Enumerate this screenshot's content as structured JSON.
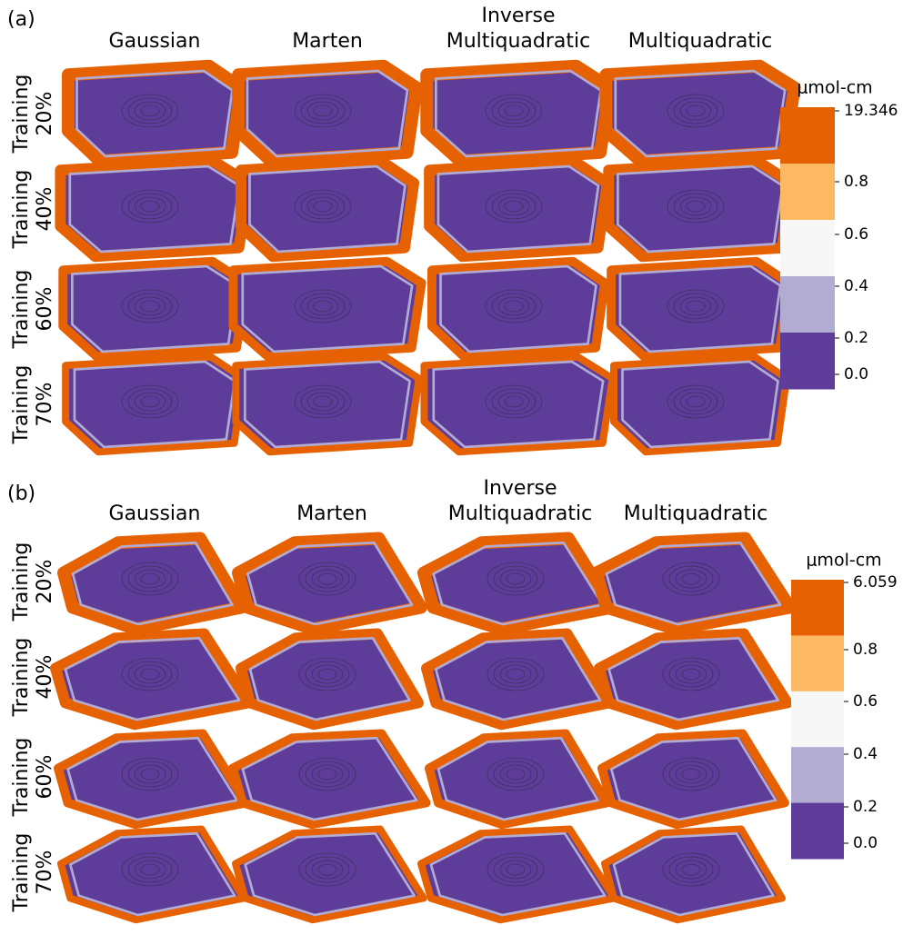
{
  "panels": [
    {
      "label": "(a)",
      "columns": [
        [
          "Gaussian"
        ],
        [
          "Marten"
        ],
        [
          "Inverse",
          "Multiquadratic"
        ],
        [
          "Multiquadratic"
        ]
      ],
      "rows": [
        [
          "Training",
          "20%"
        ],
        [
          "Training",
          "40%"
        ],
        [
          "Training",
          "60%"
        ],
        [
          "Training",
          "70%"
        ]
      ],
      "colorbar": {
        "unit": "μmol-cm",
        "ticks": [
          "19.346",
          "0.8",
          "0.6",
          "0.4",
          "0.2",
          "0.0"
        ]
      }
    },
    {
      "label": "(b)",
      "columns": [
        [
          "Gaussian"
        ],
        [
          "Marten"
        ],
        [
          "Inverse",
          "Multiquadratic"
        ],
        [
          "Multiquadratic"
        ]
      ],
      "rows": [
        [
          "Training",
          "20%"
        ],
        [
          "Training",
          "40%"
        ],
        [
          "Training",
          "60%"
        ],
        [
          "Training",
          "70%"
        ]
      ],
      "colorbar": {
        "unit": "μmol-cm",
        "ticks": [
          "6.059",
          "0.8",
          "0.6",
          "0.4",
          "0.2",
          "0.0"
        ]
      }
    }
  ]
}
